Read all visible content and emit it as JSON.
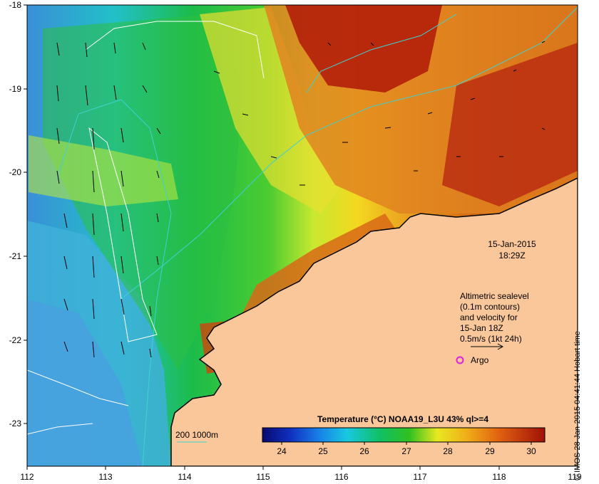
{
  "map": {
    "lon_ticks": [
      "112",
      "113",
      "114",
      "115",
      "116",
      "117",
      "118",
      "119"
    ],
    "lat_ticks": [
      "-18",
      "-19",
      "-20",
      "-21",
      "-22",
      "-23"
    ],
    "timestamp_date": "15-Jan-2015",
    "timestamp_time": "18:29Z",
    "altimetry_note": [
      "Altimetric sealevel",
      "(0.1m contours)",
      "and velocity for",
      "15-Jan 18Z",
      "0.5m/s (1kt 24h)"
    ],
    "argo_label": "Argo",
    "bathymetry_label": "200  1000m",
    "colorbar_title": "Temperature (°C) NOAA19_L3U 43% ql>=4",
    "colorbar_ticks": [
      "24",
      "25",
      "26",
      "27",
      "28",
      "29",
      "30"
    ],
    "copyright": "© IMOS 28-Jan-2015 04:41:44 Hobart time",
    "colors": {
      "land": "#f9c79a",
      "argo_marker": "#e020e0",
      "bathymetry_line": "#40d0d0",
      "sealevel_contour": "#ffffff"
    }
  }
}
